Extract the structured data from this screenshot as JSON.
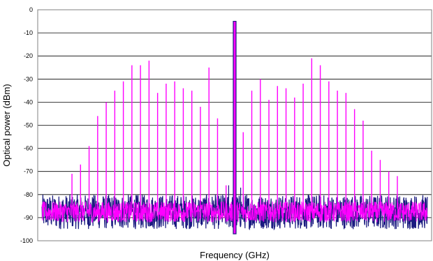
{
  "chart_data": {
    "type": "line",
    "title": "",
    "xlabel": "Frequency (GHz)",
    "ylabel": "Optical power (dBm)",
    "ylim": [
      -100,
      0
    ],
    "yticks": [
      0,
      -10,
      -20,
      -30,
      -40,
      -50,
      -60,
      -70,
      -80,
      -90,
      -100
    ],
    "xticks": [],
    "grid": "horizontal",
    "legend": "none",
    "noise_floor_range": [
      -95,
      -80
    ],
    "series": [
      {
        "color": "#1a1a80",
        "description_role": "carrier",
        "peaks": [
          {
            "x": 0.0,
            "y": -5
          }
        ]
      },
      {
        "color": "#ff00ff",
        "description_role": "comb",
        "peaks": [
          {
            "x": -19,
            "y": -71
          },
          {
            "x": -18,
            "y": -67
          },
          {
            "x": -17,
            "y": -59
          },
          {
            "x": -16,
            "y": -46
          },
          {
            "x": -15,
            "y": -40
          },
          {
            "x": -14,
            "y": -35
          },
          {
            "x": -13,
            "y": -31
          },
          {
            "x": -12,
            "y": -24
          },
          {
            "x": -11,
            "y": -24
          },
          {
            "x": -10,
            "y": -22
          },
          {
            "x": -9,
            "y": -36
          },
          {
            "x": -8,
            "y": -32
          },
          {
            "x": -7,
            "y": -31
          },
          {
            "x": -6,
            "y": -34
          },
          {
            "x": -5,
            "y": -35
          },
          {
            "x": -4,
            "y": -42
          },
          {
            "x": -3,
            "y": -25
          },
          {
            "x": -2,
            "y": -47
          },
          {
            "x": -1,
            "y": -76
          },
          {
            "x": 1,
            "y": -53
          },
          {
            "x": 2,
            "y": -35
          },
          {
            "x": 3,
            "y": -30
          },
          {
            "x": 4,
            "y": -39
          },
          {
            "x": 5,
            "y": -33
          },
          {
            "x": 6,
            "y": -34
          },
          {
            "x": 7,
            "y": -38
          },
          {
            "x": 8,
            "y": -32
          },
          {
            "x": 9,
            "y": -21
          },
          {
            "x": 10,
            "y": -24
          },
          {
            "x": 11,
            "y": -31
          },
          {
            "x": 12,
            "y": -35
          },
          {
            "x": 13,
            "y": -36
          },
          {
            "x": 14,
            "y": -43
          },
          {
            "x": 15,
            "y": -48
          },
          {
            "x": 16,
            "y": -61
          },
          {
            "x": 17,
            "y": -65
          },
          {
            "x": 18,
            "y": -70
          },
          {
            "x": 19,
            "y": -72
          }
        ]
      }
    ]
  }
}
